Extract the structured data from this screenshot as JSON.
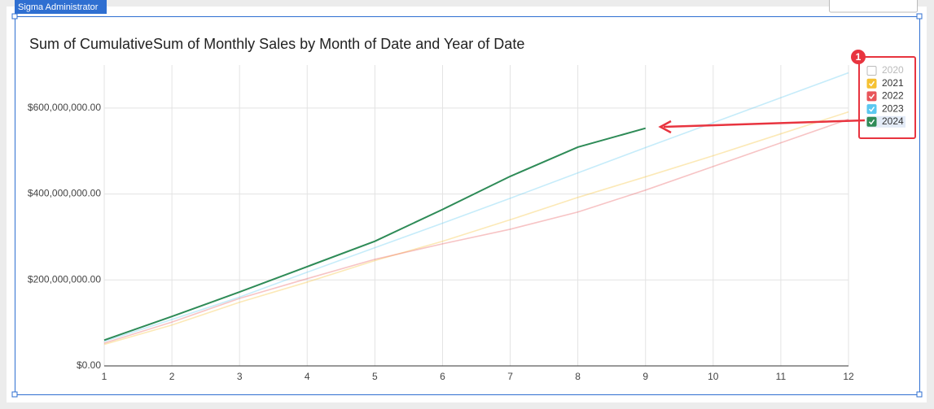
{
  "badge": "Sigma Administrator",
  "annotation": "1",
  "chart_data": {
    "type": "line",
    "title": "Sum of CumulativeSum of Monthly Sales by Month of Date and Year of Date",
    "x": [
      1,
      2,
      3,
      4,
      5,
      6,
      7,
      8,
      9,
      10,
      11,
      12
    ],
    "xlim": [
      1,
      12
    ],
    "xticks": [
      1,
      2,
      3,
      4,
      5,
      6,
      7,
      8,
      9,
      10,
      11,
      12
    ],
    "ylim": [
      0,
      700000000
    ],
    "yticks": [
      {
        "value": 0,
        "label": "$0.00"
      },
      {
        "value": 200000000,
        "label": "$200,000,000.00"
      },
      {
        "value": 400000000,
        "label": "$400,000,000.00"
      },
      {
        "value": 600000000,
        "label": "$600,000,000.00"
      }
    ],
    "grid": true,
    "legend": "right",
    "series": [
      {
        "name": "2020",
        "color": "#bdbdbd",
        "checked": false,
        "highlighted": false,
        "values": [
          null,
          null,
          null,
          null,
          null,
          null,
          null,
          null,
          null,
          null,
          null,
          null
        ]
      },
      {
        "name": "2021",
        "color": "#f5c132",
        "checked": true,
        "highlighted": false,
        "values": [
          50000000,
          95000000,
          148000000,
          195000000,
          245000000,
          290000000,
          340000000,
          392000000,
          440000000,
          489000000,
          540000000,
          591000000
        ]
      },
      {
        "name": "2022",
        "color": "#e8555a",
        "checked": true,
        "highlighted": false,
        "values": [
          53000000,
          102000000,
          157000000,
          203000000,
          248000000,
          284000000,
          318000000,
          358000000,
          409000000,
          464000000,
          519000000,
          574000000
        ]
      },
      {
        "name": "2023",
        "color": "#5bc8f0",
        "checked": true,
        "highlighted": false,
        "values": [
          57000000,
          108000000,
          160000000,
          218000000,
          275000000,
          332000000,
          390000000,
          449000000,
          508000000,
          566000000,
          624000000,
          682000000
        ]
      },
      {
        "name": "2024",
        "color": "#2e8b57",
        "checked": true,
        "highlighted": true,
        "values": [
          60000000,
          115000000,
          172000000,
          231000000,
          290000000,
          364000000,
          441000000,
          509000000,
          553000000,
          null,
          null,
          null
        ]
      }
    ]
  }
}
